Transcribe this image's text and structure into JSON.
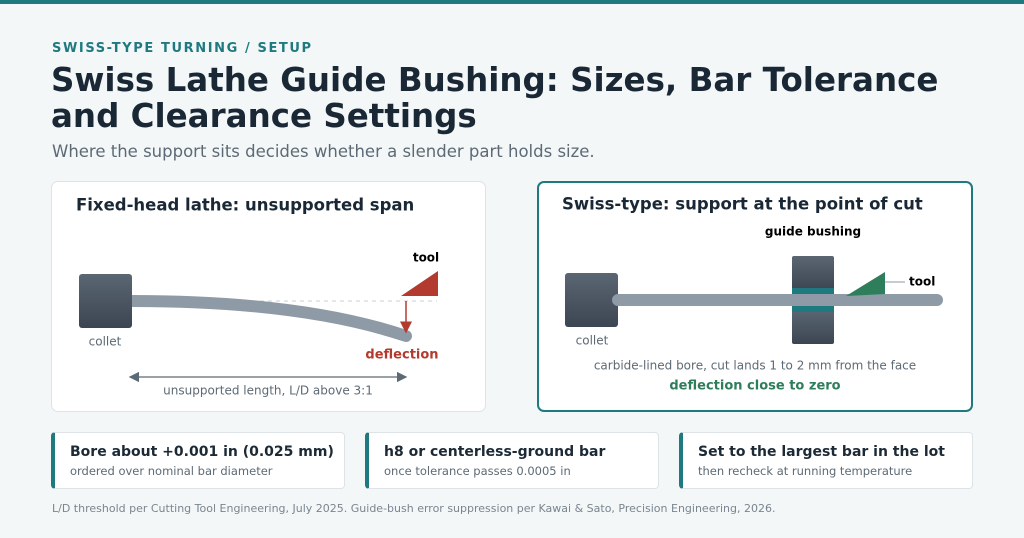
{
  "header": {
    "eyebrow": "SWISS-TYPE TURNING / SETUP",
    "title_lines": [
      "Swiss Lathe Guide Bushing: Sizes, Bar Tolerance",
      "and Clearance Settings"
    ],
    "subtitle": "Where the support sits decides whether a slender part holds size."
  },
  "panels": [
    {
      "title": "Fixed-head lathe: unsupported span",
      "tool": "tool",
      "collet": "collet",
      "deflection": "deflection",
      "span": "unsupported length, L/D above 3:1"
    },
    {
      "title": "Swiss-type: support at the point of cut",
      "guide": "guide bushing",
      "tool": "tool",
      "collet": "collet",
      "note": "carbide-lined bore, cut lands 1 to 2 mm from the face",
      "result": "deflection close to zero"
    }
  ],
  "cards": [
    {
      "title": "Bore about +0.001 in (0.025 mm)",
      "detail": "ordered over nominal bar diameter"
    },
    {
      "title": "h8 or centerless-ground bar",
      "detail": "once tolerance passes 0.0005 in"
    },
    {
      "title": "Set to the largest bar in the lot",
      "detail": "then recheck at running temperature"
    }
  ],
  "footnote": "L/D threshold per Cutting Tool Engineering, July 2025. Guide-bush error suppression per Kawai & Sato, Precision Engineering, 2026."
}
